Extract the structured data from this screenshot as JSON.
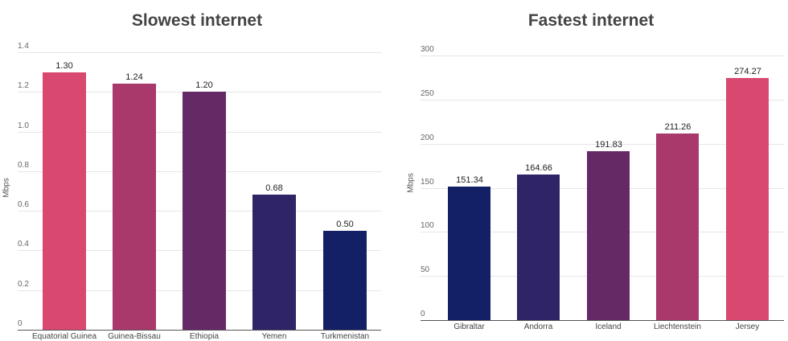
{
  "chart_data": [
    {
      "type": "bar",
      "title": "Slowest internet",
      "xlabel": "",
      "ylabel": "Mbps",
      "ylim": [
        0,
        1.4
      ],
      "yticks": [
        "0",
        "0.2",
        "0.4",
        "0.6",
        "0.8",
        "1.0",
        "1.2",
        "1.4"
      ],
      "categories": [
        "Equatorial Guinea",
        "Guinea-Bissau",
        "Ethiopia",
        "Yemen",
        "Turkmenistan"
      ],
      "values": [
        1.3,
        1.24,
        1.2,
        0.68,
        0.5
      ],
      "value_labels": [
        "1.30",
        "1.24",
        "1.20",
        "0.68",
        "0.50"
      ],
      "colors": [
        "#d8486f",
        "#a9396b",
        "#652a66",
        "#2e2466",
        "#132066"
      ],
      "grid": true,
      "legend": "none"
    },
    {
      "type": "bar",
      "title": "Fastest internet",
      "xlabel": "",
      "ylabel": "Mbps",
      "ylim": [
        0,
        300
      ],
      "yticks": [
        "0",
        "50",
        "100",
        "150",
        "200",
        "250",
        "300"
      ],
      "categories": [
        "Gibraltar",
        "Andorra",
        "Iceland",
        "Liechtenstein",
        "Jersey"
      ],
      "values": [
        151.34,
        164.66,
        191.83,
        211.26,
        274.27
      ],
      "value_labels": [
        "151.34",
        "164.66",
        "191.83",
        "211.26",
        "274.27"
      ],
      "colors": [
        "#132066",
        "#2e2466",
        "#652a66",
        "#a9396b",
        "#d8486f"
      ],
      "grid": true,
      "legend": "none"
    }
  ]
}
